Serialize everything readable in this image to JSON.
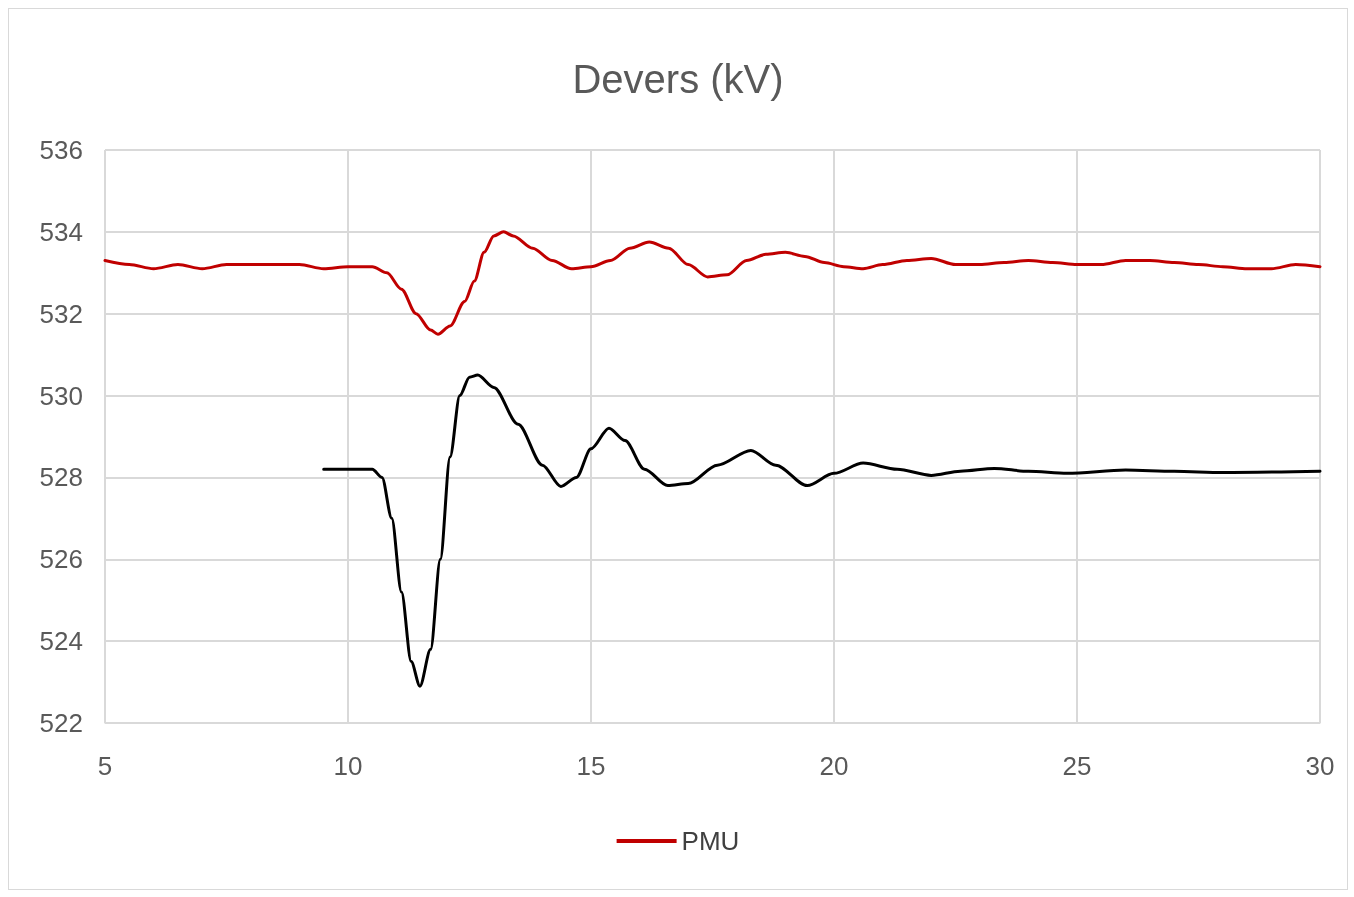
{
  "chart_data": {
    "type": "line",
    "title": "Devers (kV)",
    "xlim": [
      5,
      30
    ],
    "xticks": [
      5,
      10,
      15,
      20,
      25,
      30
    ],
    "ylim": [
      522,
      536
    ],
    "yticks": [
      522,
      524,
      526,
      528,
      530,
      532,
      534,
      536
    ],
    "grid": true,
    "legend": "bottom",
    "marker": "none",
    "line_style": "solid",
    "series": [
      {
        "name": "PMU",
        "color": "#c00000",
        "x": [
          5,
          5.5,
          6,
          6.5,
          7,
          7.5,
          8,
          8.5,
          9,
          9.5,
          10,
          10.5,
          10.8,
          11.1,
          11.4,
          11.7,
          11.85,
          12.1,
          12.4,
          12.6,
          12.8,
          13,
          13.2,
          13.4,
          13.8,
          14.2,
          14.6,
          15,
          15.4,
          15.8,
          16.2,
          16.6,
          17,
          17.4,
          17.8,
          18.2,
          18.6,
          19,
          19.4,
          19.8,
          20.2,
          20.6,
          21,
          21.5,
          22,
          22.5,
          23,
          23.5,
          24,
          24.5,
          25,
          25.5,
          26,
          26.5,
          27,
          27.5,
          28,
          28.5,
          29,
          29.5,
          30
        ],
        "values": [
          533.3,
          533.2,
          533.1,
          533.2,
          533.1,
          533.2,
          533.2,
          533.2,
          533.2,
          533.1,
          533.15,
          533.15,
          533,
          532.6,
          532,
          531.6,
          531.5,
          531.7,
          532.3,
          532.8,
          533.5,
          533.9,
          534,
          533.9,
          533.6,
          533.3,
          533.1,
          533.15,
          533.3,
          533.6,
          533.75,
          533.6,
          533.2,
          532.9,
          532.95,
          533.3,
          533.45,
          533.5,
          533.4,
          533.25,
          533.15,
          533.1,
          533.2,
          533.3,
          533.35,
          533.2,
          533.2,
          533.25,
          533.3,
          533.25,
          533.2,
          533.2,
          533.3,
          533.3,
          533.25,
          533.2,
          533.15,
          533.1,
          533.1,
          533.2,
          533.15
        ]
      },
      {
        "color": "#000000",
        "x": [
          9.5,
          10.5,
          10.7,
          10.9,
          11.1,
          11.3,
          11.48,
          11.7,
          11.9,
          12.1,
          12.3,
          12.5,
          12.67,
          13,
          13.5,
          14,
          14.38,
          14.7,
          15,
          15.37,
          15.7,
          16.1,
          16.58,
          17,
          17.6,
          18.29,
          18.8,
          19.45,
          20,
          20.6,
          21.3,
          22,
          22.6,
          23.3,
          24,
          24.8,
          26,
          27,
          28,
          30
        ],
        "values": [
          528.2,
          528.2,
          528,
          527,
          525.2,
          523.5,
          522.9,
          523.8,
          526,
          528.5,
          530,
          530.45,
          530.5,
          530.2,
          529.3,
          528.3,
          527.78,
          528,
          528.7,
          529.2,
          528.9,
          528.2,
          527.8,
          527.85,
          528.3,
          528.66,
          528.3,
          527.8,
          528.1,
          528.35,
          528.2,
          528.05,
          528.15,
          528.22,
          528.15,
          528.1,
          528.18,
          528.15,
          528.12,
          528.15
        ]
      }
    ]
  }
}
